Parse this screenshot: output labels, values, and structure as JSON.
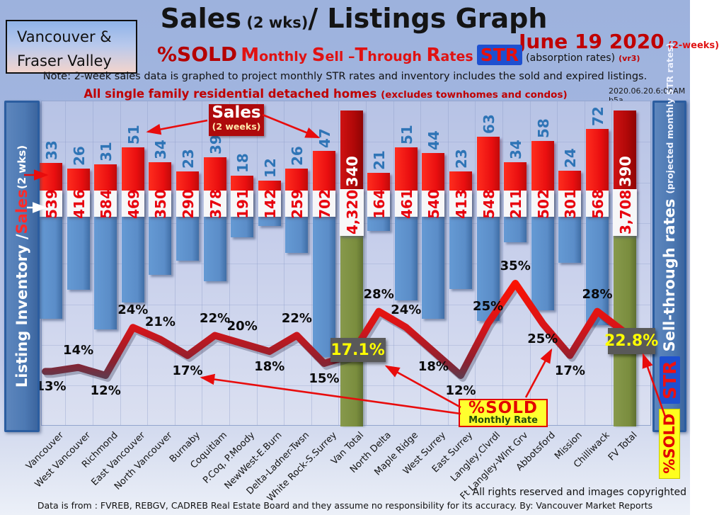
{
  "header": {
    "region_line1": "Vancouver &",
    "region_line2": "Fraser Valley",
    "title_sales": "Sales",
    "title_2wks": " (2 wks)",
    "title_rest": "/ Listings Graph",
    "date": "June 19  2020",
    "date_note": "(2-weeks)",
    "pct_sold": "%SOLD",
    "str_phrase": "Monthly Sell –Through Rates",
    "str_badge": "STR",
    "absorption": "(absorption rates)",
    "version": "(vr3)",
    "note": "Note: 2-week sales data is graphed to project monthly STR rates and inventory includes the sold and expired listings.",
    "subtitle": "All single family residential detached homes ",
    "subtitle_note": "(excludes townhomes and condos)",
    "timestamp": "2020.06.20.6:00AM b5a"
  },
  "left_axis": {
    "part1": "Listing Inventory / ",
    "part2": "Sales",
    "part3": " (2  wks)"
  },
  "right_axis": {
    "pct_sold": "%SOLD",
    "str": "STR",
    "title": "Sell-through rates",
    "subtitle": " (projected monthly STR rates)"
  },
  "legend": {
    "sales_title": "Sales",
    "sales_sub": "(2 weeks)",
    "psold_title": "%SOLD",
    "psold_sub": "Monthly Rate"
  },
  "footer": {
    "rights": "All rights reserved and  images copyrighted",
    "source": "Data is from : FVREB, REBGV, CADREB Real Estate Board and they assume no responsibility for its accuracy. By: Vancouver Market Reports"
  },
  "chart_data": {
    "type": "bar+line combo (sales bars, inventory bars, %SOLD STR line)",
    "categories": [
      "Vancouver",
      "West Vancouver",
      "Richmond",
      "East Vancouver",
      "North Vancouver",
      "Burnaby",
      "Coquitlam",
      "P.Coq, P.Moody",
      "NewWest-E.Burn",
      "Delta-Ladner-Twsn",
      "White Rock-S.Surrey",
      "Van Total",
      "North Delta",
      "Maple Ridge",
      "West Surrey",
      "East Surrey",
      "Langley,Clvrdl",
      "Ft Langley-Wlnt Grv",
      "Abbotsford",
      "Mission",
      "Chilliwack",
      "FV Total"
    ],
    "series": [
      {
        "name": "Sales (2 weeks)",
        "type": "bar",
        "values": [
          33,
          26,
          31,
          51,
          34,
          23,
          39,
          18,
          12,
          26,
          47,
          340,
          21,
          51,
          44,
          23,
          63,
          34,
          58,
          24,
          72,
          390
        ]
      },
      {
        "name": "Listing Inventory",
        "type": "bar",
        "values": [
          539,
          416,
          584,
          469,
          350,
          290,
          378,
          191,
          142,
          259,
          702,
          4320,
          164,
          461,
          540,
          413,
          548,
          211,
          502,
          301,
          568,
          3708
        ]
      },
      {
        "name": "%SOLD Monthly Sell-Through Rate (STR)",
        "type": "line",
        "values": [
          13,
          14,
          12,
          24,
          21,
          17,
          22,
          20,
          18,
          22,
          15,
          17.1,
          28,
          24,
          18,
          12,
          25,
          35,
          25,
          17,
          28,
          22.8
        ]
      }
    ],
    "inventory_labels": [
      "539",
      "416",
      "584",
      "469",
      "350",
      "290",
      "378",
      "191",
      "142",
      "259",
      "702",
      "4,320",
      "164",
      "461",
      "540",
      "413",
      "548",
      "211",
      "502",
      "301",
      "568",
      "3,708"
    ],
    "pct_labels": [
      "13%",
      "14%",
      "12%",
      "24%",
      "21%",
      "17%",
      "22%",
      "20%",
      "18%",
      "22%",
      "15%",
      "17.1%",
      "28%",
      "24%",
      "18%",
      "12%",
      "25%",
      "35%",
      "25%",
      "17%",
      "28%",
      "22.8%"
    ],
    "totals_index": [
      11,
      21
    ],
    "label_side": [
      "below",
      "above",
      "below",
      "above",
      "above",
      "below",
      "above",
      "above",
      "below",
      "above",
      "below",
      "box",
      "above",
      "above",
      "below",
      "below",
      "above",
      "above",
      "below",
      "below",
      "above",
      "box"
    ],
    "legend_position": "annotations on plot",
    "grid": "on",
    "colors": {
      "sales_bar": "#ee1111",
      "total_sales_bar": "#b00808",
      "inventory_bar": "#5b8dc8",
      "total_inventory_bar": "#7a8d3e",
      "str_line": "#e8140c",
      "pct_box_bg": "#595959",
      "pct_box_text": "#ffff00",
      "sales_count_text": "#2e74b6",
      "inventory_count_text": "#e8000d",
      "accent_dark_red": "#c00000",
      "str_badge_bg": "#1e50d0"
    }
  }
}
